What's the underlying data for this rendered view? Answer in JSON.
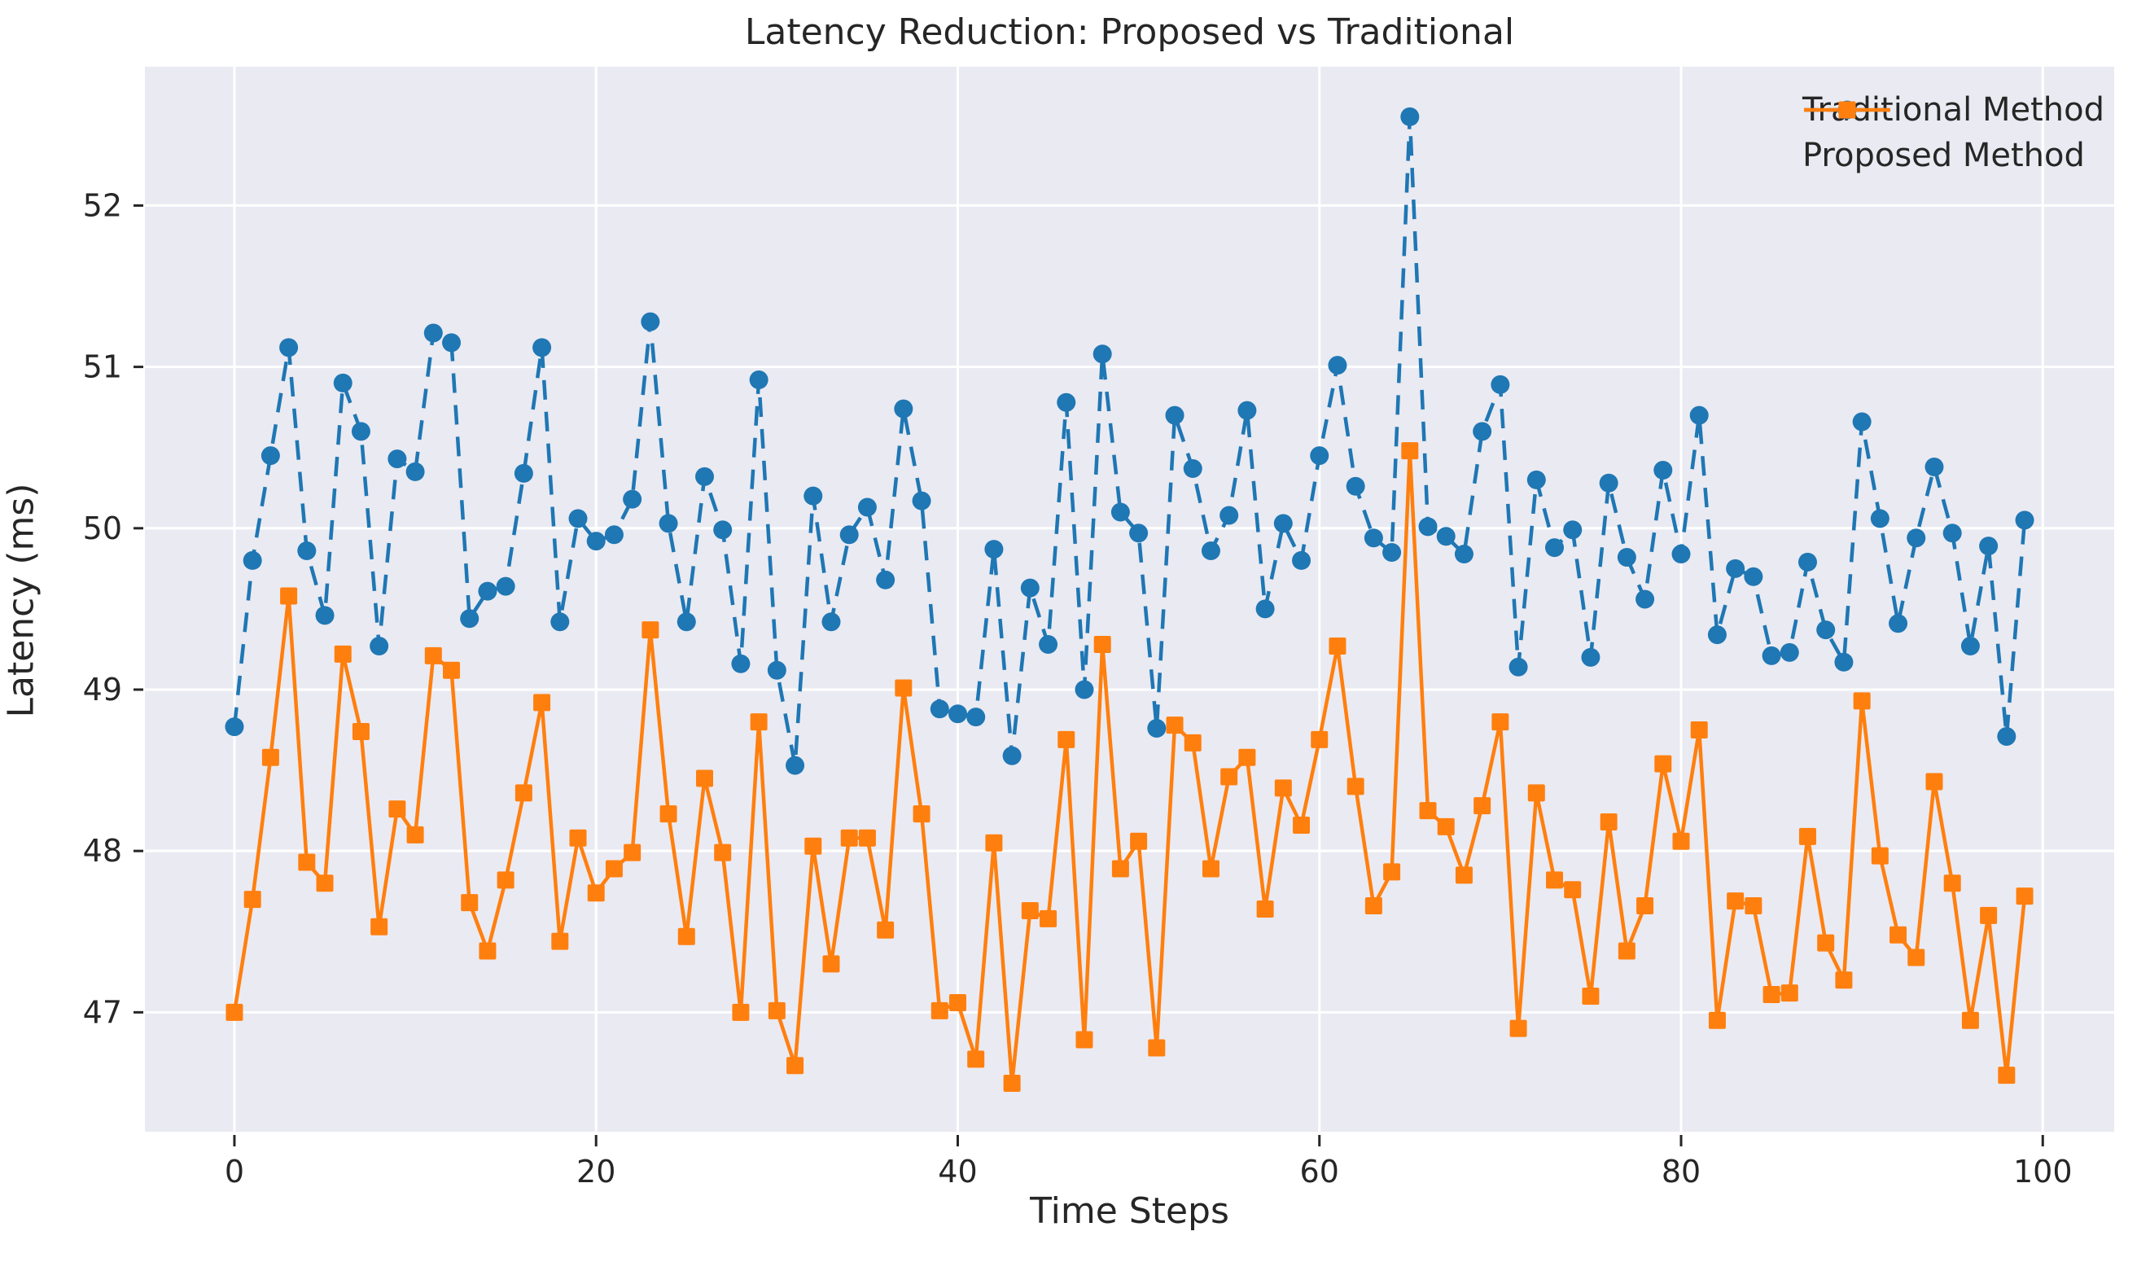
{
  "title": "Latency Reduction: Proposed vs Traditional",
  "chart_data": {
    "type": "line",
    "title": "Latency Reduction: Proposed vs Traditional",
    "xlabel": "Time Steps",
    "ylabel": "Latency (ms)",
    "x_start": 0,
    "x_step": 1,
    "n_points": 100,
    "xlim": [
      -4.95,
      103.95
    ],
    "ylim": [
      46.26,
      52.86
    ],
    "xticks": [
      0,
      20,
      40,
      60,
      80,
      100
    ],
    "yticks": [
      47,
      48,
      49,
      50,
      51,
      52
    ],
    "grid": true,
    "legend_position": "upper right",
    "plot_bg": "#eaeaf2",
    "grid_color": "#ffffff",
    "text_color": "#262626",
    "series": [
      {
        "name": "Traditional Method",
        "color": "#1f77b4",
        "line_style": "dashed",
        "marker": "circle",
        "values": [
          48.77,
          49.8,
          50.45,
          51.12,
          49.86,
          49.46,
          50.9,
          50.6,
          49.27,
          50.43,
          50.35,
          51.21,
          51.15,
          49.44,
          49.61,
          49.64,
          50.34,
          51.12,
          49.42,
          50.06,
          49.92,
          49.96,
          50.18,
          51.28,
          50.03,
          49.42,
          50.32,
          49.99,
          49.16,
          50.92,
          49.12,
          48.53,
          50.2,
          49.42,
          49.96,
          50.13,
          49.68,
          50.74,
          50.17,
          48.88,
          48.85,
          48.83,
          49.87,
          48.59,
          49.63,
          49.28,
          50.78,
          49.0,
          51.08,
          50.1,
          49.97,
          48.76,
          50.7,
          50.37,
          49.86,
          50.08,
          50.73,
          49.5,
          50.03,
          49.8,
          50.45,
          51.01,
          50.26,
          49.94,
          49.85,
          52.55,
          50.01,
          49.95,
          49.84,
          50.6,
          50.89,
          49.14,
          50.3,
          49.88,
          49.99,
          49.2,
          50.28,
          49.82,
          49.56,
          50.36,
          49.84,
          50.7,
          49.34,
          49.75,
          49.7,
          49.21,
          49.23,
          49.79,
          49.37,
          49.17,
          50.66,
          50.06,
          49.41,
          49.94,
          50.38,
          49.97,
          49.27,
          49.89,
          48.71,
          50.05
        ]
      },
      {
        "name": "Proposed Method",
        "color": "#ff7f0e",
        "line_style": "solid",
        "marker": "square",
        "values": [
          47.0,
          47.7,
          48.58,
          49.58,
          47.93,
          47.8,
          49.22,
          48.74,
          47.53,
          48.26,
          48.1,
          49.21,
          49.12,
          47.68,
          47.38,
          47.82,
          48.36,
          48.92,
          47.44,
          48.08,
          47.74,
          47.89,
          47.99,
          49.37,
          48.23,
          47.47,
          48.45,
          47.99,
          47.0,
          48.8,
          47.01,
          46.67,
          48.03,
          47.3,
          48.08,
          48.08,
          47.51,
          49.01,
          48.23,
          47.01,
          47.06,
          46.71,
          48.05,
          46.56,
          47.63,
          47.58,
          48.69,
          46.83,
          49.28,
          47.89,
          48.06,
          46.78,
          48.78,
          48.67,
          47.89,
          48.46,
          48.58,
          47.64,
          48.39,
          48.16,
          48.69,
          49.27,
          48.4,
          47.66,
          47.87,
          50.48,
          48.25,
          48.15,
          47.85,
          48.28,
          48.8,
          46.9,
          48.36,
          47.82,
          47.76,
          47.1,
          48.18,
          47.38,
          47.66,
          48.54,
          48.06,
          48.75,
          46.95,
          47.69,
          47.66,
          47.11,
          47.12,
          48.09,
          47.43,
          47.2,
          48.93,
          47.97,
          47.48,
          47.34,
          48.43,
          47.8,
          46.95,
          47.6,
          46.61,
          47.72
        ]
      }
    ]
  }
}
